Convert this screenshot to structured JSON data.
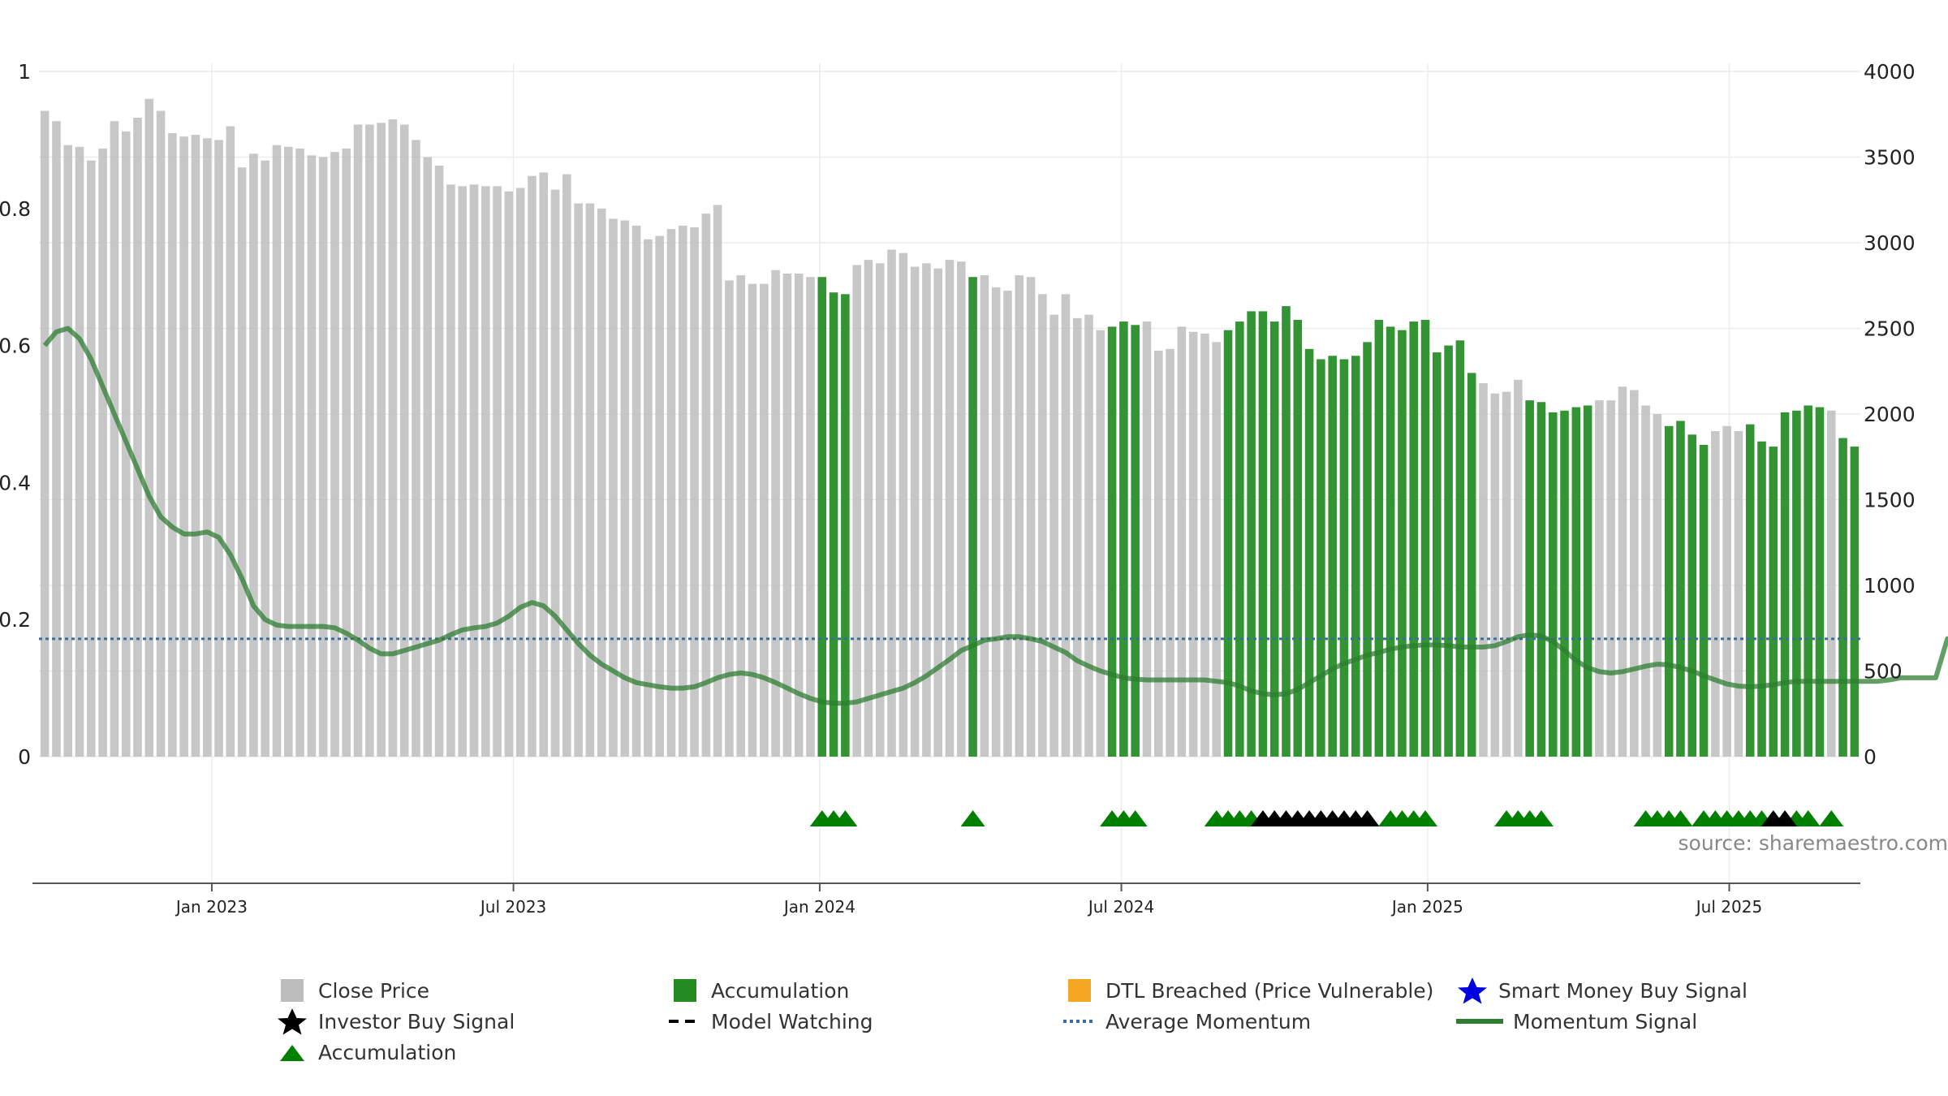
{
  "chart_data": {
    "type": "bar",
    "source": "source: sharemaestro.com",
    "left_axis": {
      "ylim": [
        0,
        1
      ],
      "ticks": [
        "0",
        "0.2",
        "0.4",
        "0.6",
        "0.8",
        "1"
      ]
    },
    "right_axis": {
      "ylim": [
        0,
        4000
      ],
      "ticks": [
        "0",
        "500",
        "1000",
        "1500",
        "2000",
        "2500",
        "3000",
        "3500",
        "4000"
      ]
    },
    "x_axis": {
      "ticks": [
        {
          "label": "Jan 2023",
          "index": 14.4
        },
        {
          "label": "Jul 2023",
          "index": 40.4
        },
        {
          "label": "Jan 2024",
          "index": 66.8
        },
        {
          "label": "Jul 2024",
          "index": 92.8
        },
        {
          "label": "Jan 2025",
          "index": 119.2
        },
        {
          "label": "Jul 2025",
          "index": 145.2
        }
      ]
    },
    "close_price": [
      3770,
      3710,
      3570,
      3560,
      3480,
      3550,
      3710,
      3650,
      3730,
      3840,
      3770,
      3640,
      3620,
      3630,
      3610,
      3600,
      3680,
      3440,
      3520,
      3480,
      3570,
      3560,
      3550,
      3510,
      3500,
      3530,
      3550,
      3690,
      3690,
      3700,
      3720,
      3690,
      3600,
      3500,
      3450,
      3340,
      3330,
      3340,
      3330,
      3330,
      3300,
      3320,
      3390,
      3410,
      3310,
      3400,
      3230,
      3230,
      3200,
      3140,
      3130,
      3100,
      3020,
      3040,
      3080,
      3100,
      3090,
      3170,
      3220,
      2780,
      2810,
      2760,
      2760,
      2840,
      2820,
      2820,
      2800,
      2800,
      2710,
      2700,
      2870,
      2900,
      2880,
      2960,
      2940,
      2860,
      2880,
      2850,
      2900,
      2890,
      2800,
      2810,
      2740,
      2720,
      2810,
      2800,
      2700,
      2580,
      2700,
      2560,
      2580,
      2490,
      2510,
      2540,
      2520,
      2540,
      2370,
      2380,
      2510,
      2480,
      2470,
      2420,
      2490,
      2540,
      2600,
      2600,
      2540,
      2630,
      2550,
      2380,
      2320,
      2340,
      2320,
      2340,
      2420,
      2550,
      2510,
      2490,
      2540,
      2550,
      2360,
      2400,
      2430,
      2240,
      2180,
      2120,
      2130,
      2200,
      2080,
      2070,
      2010,
      2020,
      2040,
      2050,
      2080,
      2080,
      2160,
      2140,
      2050,
      2000,
      1930,
      1960,
      1880,
      1820,
      1900,
      1930,
      1900,
      1940,
      1840,
      1810,
      2010,
      2020,
      2050,
      2040,
      2020,
      1860,
      1810
    ],
    "accumulation_bars": [
      67,
      68,
      69,
      80,
      92,
      93,
      94,
      102,
      103,
      104,
      105,
      106,
      107,
      108,
      109,
      110,
      111,
      112,
      113,
      114,
      115,
      116,
      117,
      118,
      119,
      120,
      121,
      122,
      123,
      128,
      129,
      130,
      131,
      132,
      133,
      140,
      141,
      142,
      143,
      147,
      148,
      149,
      150,
      151,
      152,
      153,
      155,
      156
    ],
    "momentum_signal": [
      0.6,
      0.62,
      0.625,
      0.61,
      0.58,
      0.54,
      0.5,
      0.46,
      0.42,
      0.38,
      0.35,
      0.335,
      0.325,
      0.325,
      0.328,
      0.32,
      0.295,
      0.26,
      0.22,
      0.2,
      0.192,
      0.19,
      0.19,
      0.19,
      0.19,
      0.188,
      0.18,
      0.17,
      0.158,
      0.15,
      0.15,
      0.155,
      0.16,
      0.165,
      0.17,
      0.178,
      0.185,
      0.188,
      0.19,
      0.195,
      0.205,
      0.218,
      0.225,
      0.22,
      0.205,
      0.185,
      0.165,
      0.148,
      0.135,
      0.125,
      0.115,
      0.108,
      0.105,
      0.102,
      0.1,
      0.1,
      0.102,
      0.108,
      0.115,
      0.12,
      0.122,
      0.12,
      0.115,
      0.108,
      0.1,
      0.092,
      0.085,
      0.08,
      0.078,
      0.078,
      0.08,
      0.085,
      0.09,
      0.095,
      0.1,
      0.108,
      0.118,
      0.13,
      0.142,
      0.155,
      0.162,
      0.17,
      0.172,
      0.175,
      0.175,
      0.172,
      0.168,
      0.16,
      0.152,
      0.14,
      0.132,
      0.125,
      0.12,
      0.115,
      0.113,
      0.112,
      0.112,
      0.112,
      0.112,
      0.112,
      0.112,
      0.11,
      0.108,
      0.103,
      0.096,
      0.092,
      0.09,
      0.092,
      0.098,
      0.108,
      0.118,
      0.128,
      0.136,
      0.142,
      0.148,
      0.152,
      0.157,
      0.16,
      0.162,
      0.163,
      0.163,
      0.162,
      0.16,
      0.16,
      0.16,
      0.162,
      0.168,
      0.175,
      0.178,
      0.176,
      0.168,
      0.155,
      0.14,
      0.13,
      0.124,
      0.122,
      0.124,
      0.128,
      0.132,
      0.135,
      0.134,
      0.13,
      0.125,
      0.118,
      0.112,
      0.106,
      0.103,
      0.102,
      0.103,
      0.105,
      0.108,
      0.11,
      0.11,
      0.11,
      0.11,
      0.11,
      0.11,
      0.11,
      0.11,
      0.112,
      0.115,
      0.115,
      0.115,
      0.115,
      0.172,
      0.165,
      0.176
    ],
    "average_momentum": 0.172,
    "markers": {
      "accumulation": [
        67,
        68,
        69,
        80,
        92,
        93,
        94,
        101,
        102,
        103,
        104,
        116,
        117,
        118,
        119,
        126,
        127,
        128,
        129,
        138,
        139,
        140,
        141,
        143,
        144,
        145,
        146,
        147,
        148,
        151,
        152,
        154
      ],
      "investor_buy": [
        105,
        106,
        107,
        108,
        109,
        110,
        111,
        112,
        113,
        114,
        149,
        150
      ]
    },
    "colors": {
      "close_price": "#bdbdbd",
      "accumulation": "#228b22",
      "accumulation_marker": "#008000",
      "investor_buy": "#000000",
      "dtl_breached": "#f5a623",
      "smart_money": "#0000e0",
      "average_momentum": "#3a6e9e",
      "momentum": "#2e7d32"
    },
    "legend": [
      {
        "label": "Close Price",
        "icon": "square",
        "color": "#bdbdbd"
      },
      {
        "label": "Accumulation",
        "icon": "square",
        "color": "#228b22"
      },
      {
        "label": "DTL Breached (Price Vulnerable)",
        "icon": "square",
        "color": "#f5a623"
      },
      {
        "label": "Smart Money Buy Signal",
        "icon": "star",
        "color": "#0000e0"
      },
      {
        "label": "Investor Buy Signal",
        "icon": "star",
        "color": "#000000"
      },
      {
        "label": "Model Watching",
        "icon": "dashed-line",
        "color": "#000000"
      },
      {
        "label": "Average Momentum",
        "icon": "dotted-line",
        "color": "#3a6e9e"
      },
      {
        "label": "Momentum Signal",
        "icon": "solid-line",
        "color": "#2e7d32"
      },
      {
        "label": "Accumulation",
        "icon": "triangle",
        "color": "#008000"
      }
    ]
  }
}
